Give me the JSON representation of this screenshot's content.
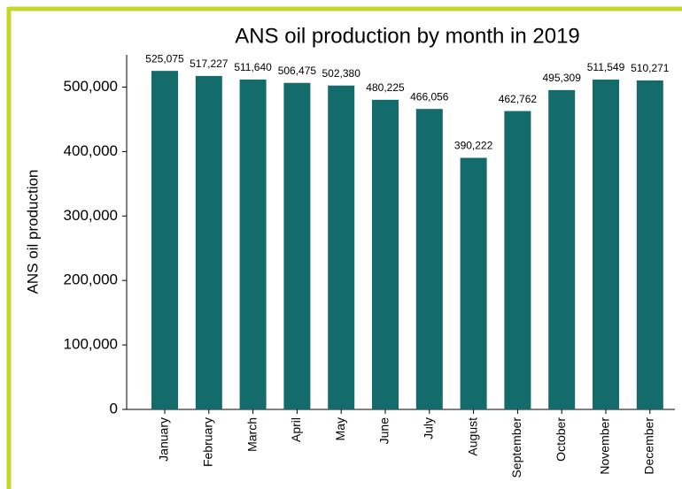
{
  "chart_data": {
    "type": "bar",
    "title": "ANS oil production by month in 2019",
    "y_label": "ANS oil production",
    "categories": [
      "January",
      "February",
      "March",
      "April",
      "May",
      "June",
      "July",
      "August",
      "September",
      "October",
      "November",
      "December"
    ],
    "values": [
      525075,
      517227,
      511640,
      506475,
      502380,
      480225,
      466056,
      390222,
      462762,
      495309,
      511549,
      510271
    ],
    "value_labels": [
      "525,075",
      "517,227",
      "511,640",
      "506,475",
      "502,380",
      "480,225",
      "466,056",
      "390,222",
      "462,762",
      "495,309",
      "511,549",
      "510,271"
    ],
    "color": "#136b6b",
    "ylim": [
      0,
      550000
    ],
    "yticks": [
      0,
      {
        "value": 100000,
        "label": "100,000"
      },
      {
        "value": 200000,
        "label": "200,000"
      },
      {
        "value": 300000,
        "label": "300,000"
      },
      {
        "value": 400000,
        "label": "400,000"
      },
      {
        "value": 500000,
        "label": "500,000"
      }
    ],
    "grid": false
  }
}
